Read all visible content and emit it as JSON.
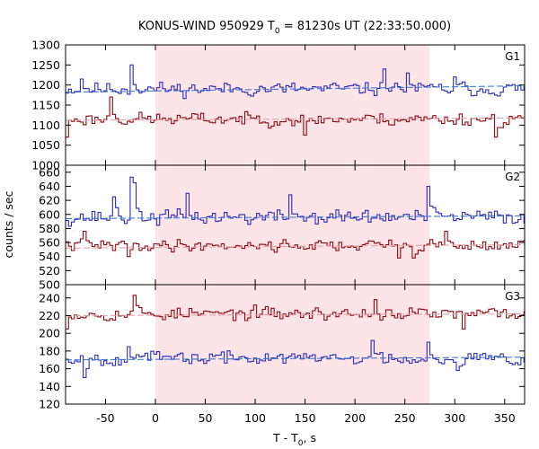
{
  "chart_data": {
    "type": "line",
    "title_main": "KONUS-WIND 950929 T",
    "title_sub": "0",
    "title_tail": " = 81230s UT (22:33:50.000)",
    "xlabel_main": "T - T",
    "xlabel_sub": "0",
    "xlabel_tail": ", s",
    "ylabel": "counts / sec",
    "xlim": [
      -90,
      370
    ],
    "x_ticks": [
      "-50",
      "0",
      "50",
      "100",
      "150",
      "200",
      "250",
      "300",
      "350"
    ],
    "x_tick_values": [
      -50,
      0,
      50,
      100,
      150,
      200,
      250,
      300,
      350
    ],
    "highlight_interval": [
      0,
      275
    ],
    "highlight_color": "#fde4e6",
    "bin_width": 2.944,
    "panels": [
      {
        "name": "G1",
        "ylim": [
          1000,
          1300
        ],
        "y_ticks": [
          "1000",
          "1050",
          "1100",
          "1150",
          "1200",
          "1250",
          "1300"
        ],
        "y_tick_values": [
          1000,
          1050,
          1100,
          1150,
          1200,
          1250,
          1300
        ],
        "series": [
          {
            "color": "#2b2bb8",
            "mean": 1190,
            "amplitude": 25,
            "seed": 11,
            "spikes": [
              [
                -25,
                1250
              ],
              [
                -73,
                1215
              ],
              [
                228,
                1240
              ],
              [
                254,
                1230
              ],
              [
                300,
                1220
              ]
            ],
            "fit": [
              1182,
              1198
            ],
            "fit_color": "#3a7bd5"
          },
          {
            "color": "#8b0a12",
            "mean": 1115,
            "amplitude": 24,
            "seed": 23,
            "spikes": [
              [
                -43,
                1170
              ],
              [
                -88,
                1070
              ],
              [
                340,
                1070
              ],
              [
                150,
                1075
              ]
            ],
            "fit": [
              1112,
              1118
            ],
            "fit_color": "#e8a0a8"
          }
        ]
      },
      {
        "name": "G2",
        "ylim": [
          500,
          670
        ],
        "y_ticks": [
          "500",
          "520",
          "540",
          "560",
          "580",
          "600",
          "620",
          "640",
          "660"
        ],
        "y_tick_values": [
          500,
          520,
          540,
          560,
          580,
          600,
          620,
          640,
          660
        ],
        "series": [
          {
            "color": "#2b2bb8",
            "mean": 596,
            "amplitude": 16,
            "seed": 37,
            "spikes": [
              [
                -23,
                653
              ],
              [
                -40,
                625
              ],
              [
                -20,
                645
              ],
              [
                33,
                630
              ],
              [
                274,
                640
              ],
              [
                136,
                628
              ]
            ],
            "fit": [
              594,
              598
            ],
            "fit_color": "#3a7bd5"
          },
          {
            "color": "#8b0a12",
            "mean": 556,
            "amplitude": 12,
            "seed": 41,
            "spikes": [
              [
                -70,
                576
              ],
              [
                -28,
                540
              ],
              [
                244,
                538
              ],
              [
                260,
                538
              ],
              [
                290,
                576
              ]
            ],
            "fit": [
              552,
              557
            ],
            "fit_color": "#e8a0a8"
          }
        ]
      },
      {
        "name": "G3",
        "ylim": [
          120,
          255
        ],
        "y_ticks": [
          "120",
          "140",
          "160",
          "180",
          "200",
          "220",
          "240"
        ],
        "y_tick_values": [
          120,
          140,
          160,
          180,
          200,
          220,
          240
        ],
        "series": [
          {
            "color": "#8b0a12",
            "mean": 222,
            "amplitude": 11,
            "seed": 53,
            "spikes": [
              [
                -20,
                243
              ],
              [
                -89,
                205
              ],
              [
                222,
                238
              ],
              [
                310,
                205
              ]
            ],
            "fit": [
              220,
              222
            ],
            "fit_color": "#e8a0a8"
          },
          {
            "color": "#2b2bb8",
            "mean": 172,
            "amplitude": 11,
            "seed": 67,
            "spikes": [
              [
                -70,
                150
              ],
              [
                -28,
                185
              ],
              [
                275,
                190
              ],
              [
                218,
                192
              ],
              [
                303,
                158
              ]
            ],
            "fit": [
              170,
              173
            ],
            "fit_color": "#3a7bd5"
          }
        ]
      }
    ]
  }
}
